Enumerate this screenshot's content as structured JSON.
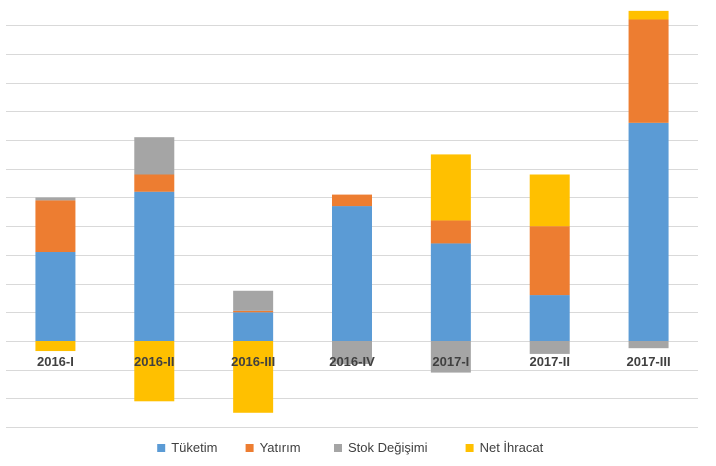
{
  "chart_data": {
    "type": "bar",
    "stacked": true,
    "categories": [
      "2016-I",
      "2016-II",
      "2016-III",
      "2016-IV",
      "2017-I",
      "2017-II",
      "2017-III"
    ],
    "series": [
      {
        "name": "Tüketim",
        "color": "#5B9BD5",
        "values": [
          3.1,
          5.2,
          1.0,
          4.7,
          3.4,
          1.6,
          7.6
        ]
      },
      {
        "name": "Yatırım",
        "color": "#ED7D31",
        "values": [
          1.8,
          0.6,
          0.05,
          0.4,
          0.8,
          2.4,
          3.6
        ]
      },
      {
        "name": "Stok Değişimi",
        "color": "#A5A5A5",
        "values": [
          0.1,
          1.3,
          0.7,
          -0.8,
          -1.1,
          -0.45,
          -0.25
        ]
      },
      {
        "name": "Net İhracat",
        "color": "#FFC000",
        "values": [
          -0.35,
          -2.1,
          -2.5,
          0.0,
          2.3,
          1.8,
          0.3
        ]
      }
    ],
    "ylim": [
      -3.1,
      11.6
    ],
    "grid": true,
    "legend": "bottom",
    "title": "",
    "xlabel": "",
    "ylabel": ""
  }
}
